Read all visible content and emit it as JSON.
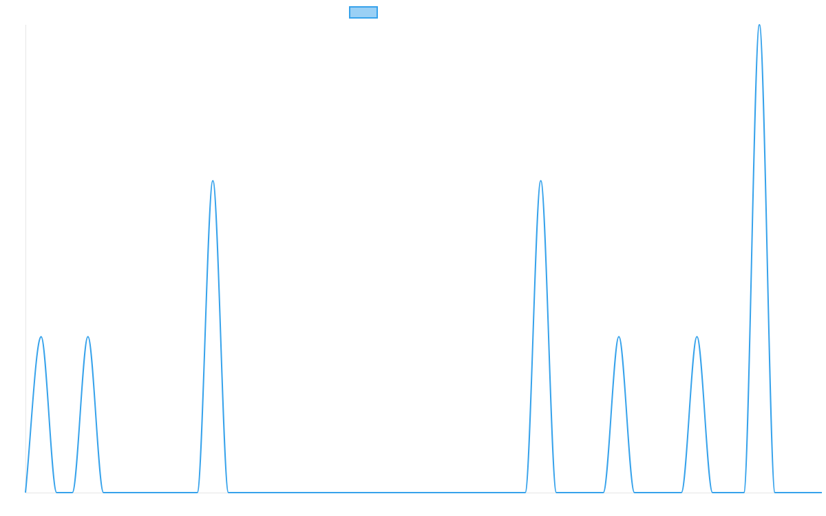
{
  "chart_data": {
    "type": "line",
    "title": "",
    "xlabel": "",
    "ylabel": "",
    "xlim": [
      0,
      51
    ],
    "ylim": [
      0,
      3
    ],
    "grid": false,
    "legend": {
      "position": "top-center",
      "entries": [
        {
          "name": ""
        }
      ]
    },
    "series": [
      {
        "name": "",
        "color": "#36a2eb",
        "fill": "rgba(54,162,235,0.5)",
        "x": [
          0,
          1,
          2,
          3,
          4,
          5,
          6,
          7,
          8,
          9,
          10,
          11,
          12,
          13,
          14,
          15,
          16,
          17,
          18,
          19,
          20,
          21,
          22,
          23,
          24,
          25,
          26,
          27,
          28,
          29,
          30,
          31,
          32,
          33,
          34,
          35,
          36,
          37,
          38,
          39,
          40,
          41,
          42,
          43,
          44,
          45,
          46,
          47,
          48,
          49,
          50,
          51
        ],
        "values": [
          0,
          1,
          0,
          0,
          1,
          0,
          0,
          0,
          0,
          0,
          0,
          0,
          2,
          0,
          0,
          0,
          0,
          0,
          0,
          0,
          0,
          0,
          0,
          0,
          0,
          0,
          0,
          0,
          0,
          0,
          0,
          0,
          0,
          2,
          0,
          0,
          0,
          0,
          1,
          0,
          0,
          0,
          0,
          1,
          0,
          0,
          0,
          3,
          0,
          0,
          0,
          0
        ]
      }
    ]
  }
}
